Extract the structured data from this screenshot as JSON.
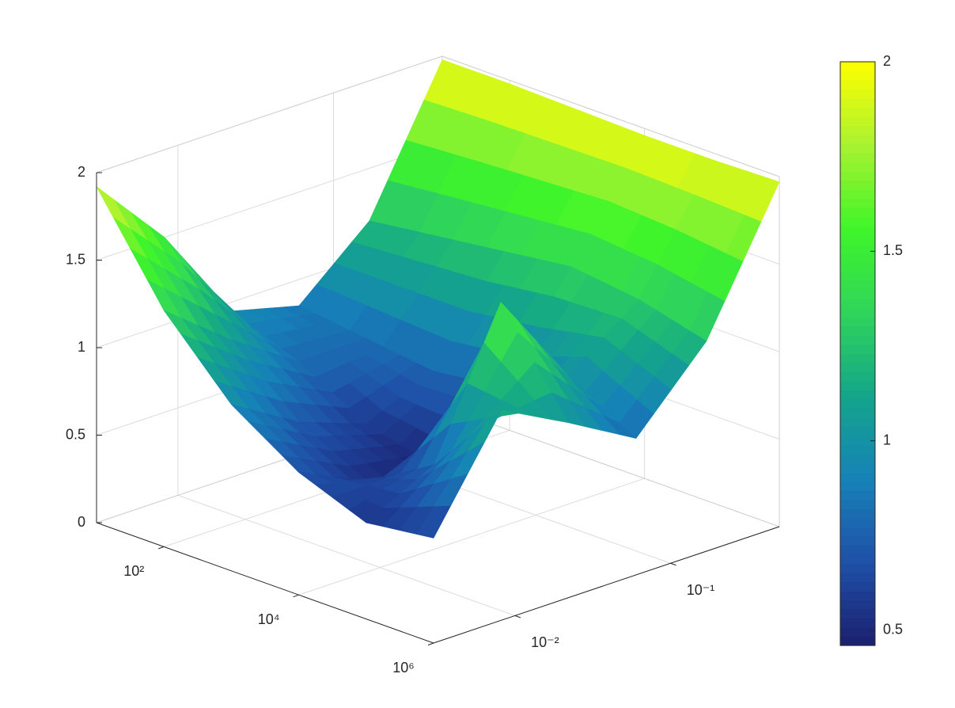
{
  "chart_data": {
    "type": "surface",
    "x": [
      10,
      100,
      1000,
      10000,
      100000,
      1000000
    ],
    "y": [
      0.003,
      0.0082,
      0.022,
      0.06,
      0.17,
      0.5
    ],
    "z": [
      [
        1.92,
        1.35,
        0.95,
        0.7,
        0.55,
        0.6
      ],
      [
        1.5,
        1.05,
        0.72,
        0.52,
        0.75,
        1.2
      ],
      [
        0.95,
        0.8,
        0.58,
        0.48,
        1.55,
        1.0
      ],
      [
        0.85,
        0.8,
        0.75,
        0.8,
        1.0,
        0.78
      ],
      [
        1.2,
        1.25,
        1.3,
        1.35,
        1.3,
        1.2
      ],
      [
        1.98,
        1.98,
        1.97,
        1.96,
        1.96,
        1.97
      ]
    ],
    "xlim": [
      10,
      1000000
    ],
    "ylim": [
      0.003,
      0.5
    ],
    "zlim": [
      0,
      2
    ],
    "xscale": "log",
    "yscale": "log",
    "xticks": [
      {
        "value": 100,
        "label": "10²"
      },
      {
        "value": 10000,
        "label": "10⁴"
      },
      {
        "value": 1000000,
        "label": "10⁶"
      }
    ],
    "yticks": [
      {
        "value": 0.01,
        "label": "10⁻²"
      },
      {
        "value": 0.1,
        "label": "10⁻¹"
      }
    ],
    "zticks": [
      0,
      0.5,
      1,
      1.5,
      2
    ],
    "clim": [
      0.46,
      2
    ],
    "cticks": [
      0.5,
      1,
      1.5,
      2
    ],
    "colormap": [
      "#1b1f6e",
      "#1f50a8",
      "#1682b8",
      "#14a58a",
      "#2fd55a",
      "#40f52a",
      "#a8f230",
      "#ffff00"
    ],
    "grid": true
  }
}
